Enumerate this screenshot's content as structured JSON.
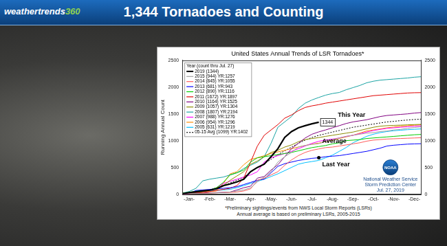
{
  "header": {
    "title": "1,344 Tornadoes and Counting",
    "logo": "weathertrends360"
  },
  "chart_data": {
    "type": "line",
    "title": "United States Annual Trends of LSR Tornadoes*",
    "y_label": "Running Annual Count",
    "categories": [
      null,
      "-Jan-",
      null,
      null,
      "-Feb-",
      null,
      null,
      "-Mar-",
      null,
      null,
      "-Apr-",
      null,
      null,
      "-May-",
      null,
      null,
      "-Jun-",
      null,
      null,
      "-Jul-",
      null,
      null,
      "-Aug-",
      null,
      null,
      "-Sep-",
      null,
      null,
      "-Oct-",
      null,
      null,
      "-Nov-",
      null,
      null,
      "-Dec-",
      null
    ],
    "series": [
      {
        "name": "2019 (1344)",
        "color": "#000000",
        "values": [
          10,
          30,
          45,
          60,
          75,
          100,
          160,
          190,
          230,
          280,
          420,
          500,
          560,
          700,
          850,
          1060,
          1170,
          1240,
          1280,
          1315,
          1344,
          null,
          null,
          null,
          null,
          null,
          null,
          null,
          null,
          null,
          null,
          null,
          null,
          null,
          null,
          null
        ]
      },
      {
        "name": "2015 (944) YR:1257",
        "color": "#a0a0a0",
        "values": [
          5,
          10,
          15,
          18,
          20,
          25,
          30,
          40,
          60,
          80,
          120,
          230,
          320,
          420,
          600,
          700,
          780,
          880,
          910,
          930,
          944,
          980,
          1020,
          1050,
          1080,
          1100,
          1120,
          1140,
          1150,
          1170,
          1180,
          1200,
          1210,
          1230,
          1245,
          1257
        ]
      },
      {
        "name": "2014 (845) YR:1055",
        "color": "#ff5a5a",
        "values": [
          5,
          8,
          10,
          15,
          20,
          25,
          30,
          32,
          40,
          60,
          100,
          260,
          300,
          360,
          420,
          540,
          640,
          720,
          780,
          820,
          845,
          870,
          880,
          900,
          920,
          940,
          960,
          990,
          1010,
          1020,
          1030,
          1035,
          1040,
          1045,
          1050,
          1055
        ]
      },
      {
        "name": "2013 (681) YR:943",
        "color": "#0000ff",
        "values": [
          5,
          10,
          70,
          80,
          90,
          100,
          110,
          120,
          140,
          180,
          220,
          260,
          280,
          400,
          520,
          570,
          600,
          630,
          650,
          670,
          681,
          700,
          710,
          720,
          740,
          760,
          780,
          800,
          830,
          860,
          900,
          915,
          925,
          935,
          940,
          943
        ]
      },
      {
        "name": "2012 (890) YR:1116",
        "color": "#00cc00",
        "values": [
          20,
          35,
          60,
          70,
          80,
          120,
          220,
          360,
          400,
          450,
          600,
          680,
          700,
          720,
          740,
          760,
          780,
          810,
          840,
          870,
          890,
          910,
          940,
          960,
          1000,
          1010,
          1020,
          1040,
          1050,
          1060,
          1070,
          1080,
          1090,
          1100,
          1110,
          1116
        ]
      },
      {
        "name": "2011 (1672) YR:1897",
        "color": "#e00000",
        "values": [
          5,
          10,
          20,
          30,
          50,
          70,
          90,
          110,
          160,
          300,
          600,
          900,
          1100,
          1200,
          1300,
          1420,
          1480,
          1560,
          1620,
          1650,
          1672,
          1700,
          1720,
          1740,
          1760,
          1780,
          1800,
          1820,
          1840,
          1850,
          1860,
          1870,
          1880,
          1890,
          1895,
          1897
        ]
      },
      {
        "name": "2010 (1164) YR:1525",
        "color": "#800080",
        "values": [
          5,
          10,
          20,
          25,
          25,
          30,
          35,
          40,
          80,
          120,
          150,
          300,
          330,
          450,
          550,
          700,
          850,
          950,
          1050,
          1120,
          1164,
          1200,
          1240,
          1280,
          1320,
          1350,
          1370,
          1390,
          1420,
          1450,
          1470,
          1480,
          1490,
          1500,
          1515,
          1525
        ]
      },
      {
        "name": "2009 (1057) YR:1304",
        "color": "#8b8b00",
        "values": [
          10,
          20,
          30,
          50,
          80,
          120,
          160,
          260,
          340,
          420,
          560,
          620,
          700,
          780,
          820,
          880,
          920,
          980,
          1020,
          1040,
          1057,
          1080,
          1100,
          1120,
          1140,
          1160,
          1190,
          1220,
          1250,
          1270,
          1280,
          1285,
          1290,
          1295,
          1300,
          1304
        ]
      },
      {
        "name": "2008 (1807) YR:2194",
        "color": "#1aa3a3",
        "values": [
          20,
          50,
          110,
          250,
          280,
          300,
          320,
          360,
          400,
          480,
          540,
          600,
          700,
          950,
          1250,
          1350,
          1450,
          1600,
          1700,
          1760,
          1807,
          1850,
          1880,
          1900,
          1950,
          1990,
          2030,
          2080,
          2110,
          2130,
          2140,
          2150,
          2160,
          2170,
          2185,
          2194
        ]
      },
      {
        "name": "2007 (988) YR:1276",
        "color": "#ff00ff",
        "values": [
          10,
          20,
          40,
          60,
          80,
          120,
          200,
          240,
          280,
          320,
          360,
          420,
          600,
          680,
          720,
          760,
          800,
          850,
          900,
          950,
          988,
          1010,
          1030,
          1050,
          1080,
          1100,
          1130,
          1160,
          1190,
          1210,
          1230,
          1240,
          1250,
          1260,
          1270,
          1276
        ]
      },
      {
        "name": "2006 (954) YR:1296",
        "color": "#ff8c00",
        "values": [
          15,
          25,
          40,
          45,
          50,
          60,
          200,
          380,
          420,
          550,
          650,
          680,
          720,
          760,
          790,
          820,
          850,
          880,
          910,
          935,
          954,
          980,
          1010,
          1040,
          1070,
          1100,
          1140,
          1180,
          1200,
          1220,
          1240,
          1255,
          1270,
          1280,
          1290,
          1296
        ]
      },
      {
        "name": "2005 (631) YR:1219",
        "color": "#00bfff",
        "values": [
          10,
          20,
          40,
          50,
          60,
          70,
          80,
          90,
          120,
          160,
          200,
          240,
          280,
          330,
          380,
          440,
          500,
          560,
          590,
          610,
          631,
          680,
          730,
          800,
          870,
          960,
          1020,
          1080,
          1120,
          1150,
          1170,
          1185,
          1195,
          1205,
          1212,
          1219
        ]
      },
      {
        "name": "05-15 Avg (1099) YR:1402",
        "color": "#000000",
        "line_style": "dotted",
        "values": [
          10,
          20,
          40,
          60,
          80,
          110,
          150,
          210,
          260,
          320,
          410,
          500,
          570,
          650,
          740,
          810,
          880,
          950,
          1010,
          1060,
          1099,
          1130,
          1160,
          1190,
          1220,
          1250,
          1270,
          1290,
          1310,
          1330,
          1350,
          1360,
          1375,
          1385,
          1395,
          1402
        ]
      }
    ],
    "ylim": [
      0,
      2500
    ],
    "yticks": [
      0,
      500,
      1000,
      1500,
      2000,
      2500
    ],
    "y2lim": [
      0,
      2500
    ],
    "y2ticks": [
      0,
      500,
      1000,
      1500,
      2000,
      2500
    ],
    "grid": false,
    "legend": "top-left",
    "legend_title": "Year (count thru Jul. 27)",
    "annotations": [
      {
        "text": "1344",
        "series": "2019 (1344)",
        "marker": "box"
      },
      {
        "text": "This Year",
        "series": "2019 (1344)"
      },
      {
        "text": "Average",
        "series": "05-15 Avg (1099) YR:1402"
      },
      {
        "text": "Last Year",
        "series": "2013 (681) YR:943",
        "marker": "dot"
      }
    ],
    "logo": "NOAA",
    "source": [
      "National Weather Service",
      "Storm Prediction Center",
      "Jul. 27, 2019"
    ],
    "notes": [
      "*Preliminary sightings/events from NWS Local Storm Reports (LSRs)",
      "Annual average is based on preliminary LSRs, 2005-2015"
    ]
  }
}
